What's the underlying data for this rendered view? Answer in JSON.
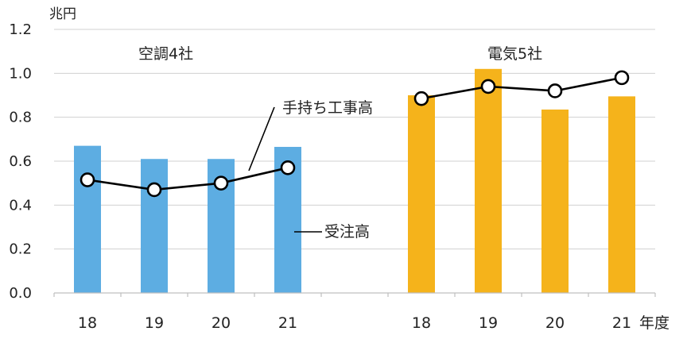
{
  "chart_data": {
    "type": "bar",
    "y_unit": "兆円",
    "x_unit": "年度",
    "ylim": [
      0,
      1.2
    ],
    "yticks": [
      "0.0",
      "0.2",
      "0.4",
      "0.6",
      "0.8",
      "1.0",
      "1.2"
    ],
    "grid": true,
    "groups": [
      {
        "name": "空調4社",
        "categories": [
          "18",
          "19",
          "20",
          "21"
        ],
        "bar_color": "#5dade2",
        "受注高": [
          0.67,
          0.61,
          0.61,
          0.665
        ],
        "手持ち工事高": [
          0.515,
          0.47,
          0.5,
          0.57
        ]
      },
      {
        "name": "電気5社",
        "categories": [
          "18",
          "19",
          "20",
          "21"
        ],
        "bar_color": "#f5b31b",
        "受注高": [
          0.9,
          1.02,
          0.835,
          0.895
        ],
        "手持ち工事高": [
          0.885,
          0.94,
          0.92,
          0.98
        ]
      }
    ],
    "annotations": {
      "line_label": "手持ち工事高",
      "bar_label": "受注高"
    }
  }
}
